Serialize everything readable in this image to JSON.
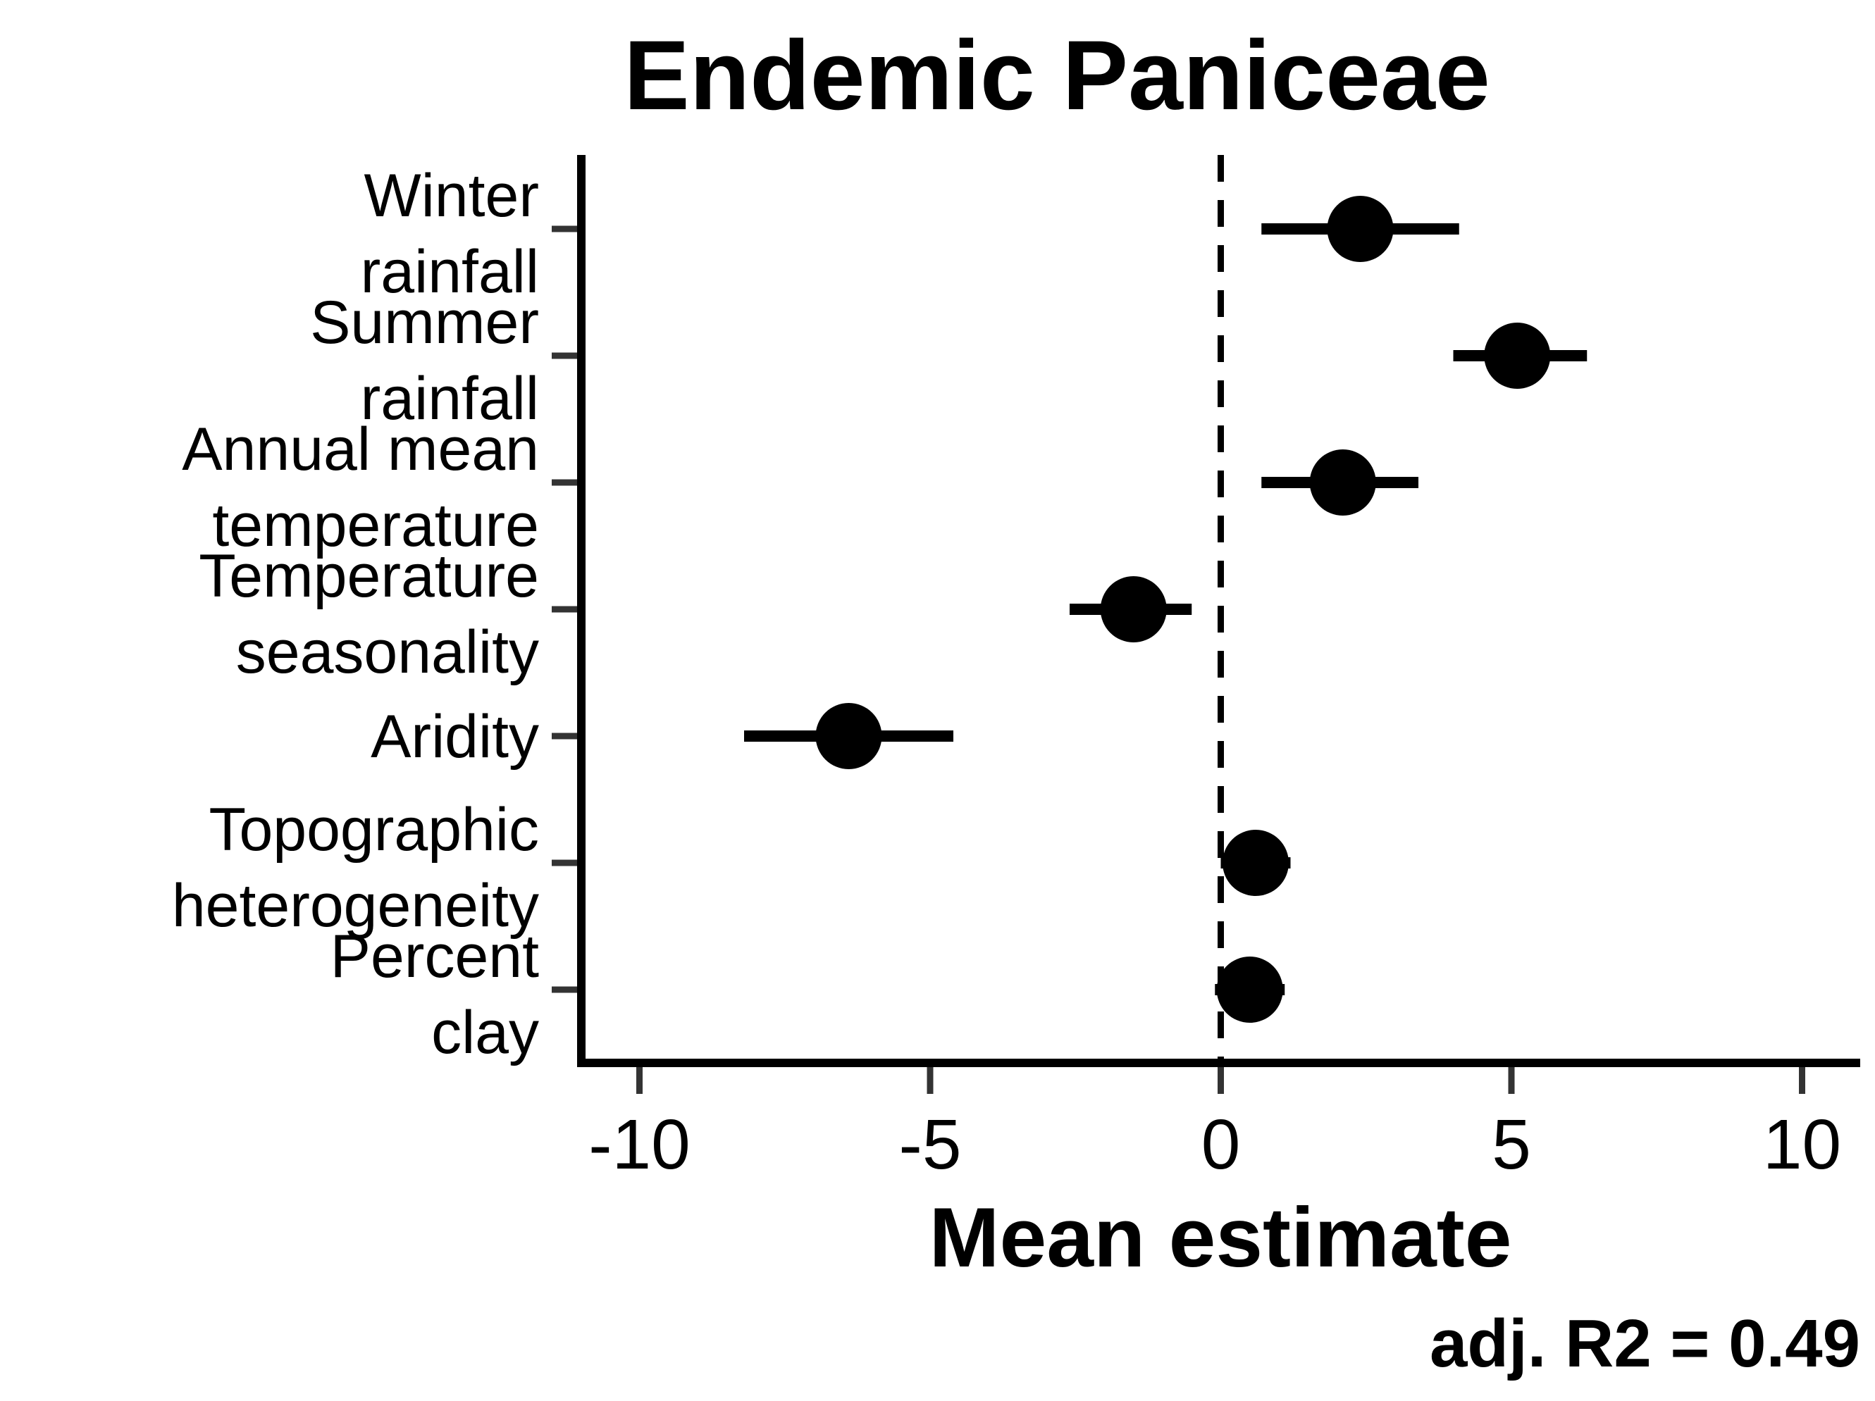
{
  "chart_data": {
    "type": "scatter",
    "subtype": "coefficient-plot",
    "title": "Endemic Paniceae",
    "xlabel": "Mean estimate",
    "ylabel": "",
    "xlim": [
      -11,
      11
    ],
    "xticks": [
      -10,
      -5,
      0,
      5,
      10
    ],
    "reference_line_x": 0,
    "grid": false,
    "legend": "none",
    "annotation": "adj. R2 = 0.49",
    "categories": [
      {
        "line1": "Winter",
        "line2": "rainfall"
      },
      {
        "line1": "Summer",
        "line2": "rainfall"
      },
      {
        "line1": "Annual mean",
        "line2": "temperature"
      },
      {
        "line1": "Temperature",
        "line2": "seasonality"
      },
      {
        "line1": "Aridity",
        "line2": ""
      },
      {
        "line1": "Topographic",
        "line2": "heterogeneity"
      },
      {
        "line1": "Percent",
        "line2": "clay"
      }
    ],
    "estimates": [
      2.4,
      5.1,
      2.1,
      -1.5,
      -6.4,
      0.6,
      0.5
    ],
    "lower": [
      0.7,
      4.0,
      0.7,
      -2.6,
      -8.2,
      0.0,
      -0.1
    ],
    "upper": [
      4.1,
      6.3,
      3.4,
      -0.5,
      -4.6,
      1.2,
      1.1
    ],
    "colors": {
      "points": "#000000",
      "axis": "#000000",
      "ticks": "#333333",
      "reference_line": "#000000"
    }
  }
}
